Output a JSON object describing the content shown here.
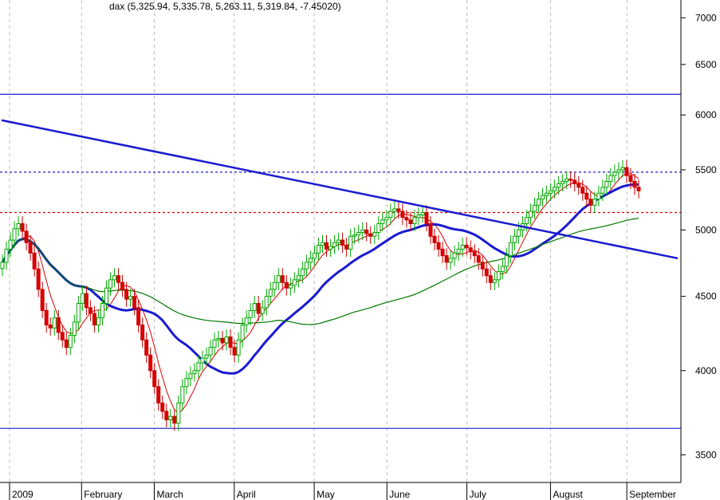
{
  "chart_data": {
    "type": "candlestick",
    "title": "dax (5,325.94, 5,335.78, 5,263.11, 5,319.84, -7.45020)",
    "y_scale": "log",
    "ylim": [
      3350,
      7200
    ],
    "y_ticks": [
      3500,
      4000,
      4500,
      5000,
      5500,
      6000,
      6500,
      7000
    ],
    "x_ticks": [
      {
        "label": "2009",
        "day": 0
      },
      {
        "label": "February",
        "day": 22
      },
      {
        "label": "March",
        "day": 42
      },
      {
        "label": "April",
        "day": 64
      },
      {
        "label": "May",
        "day": 86
      },
      {
        "label": "June",
        "day": 106
      },
      {
        "label": "July",
        "day": 128
      },
      {
        "label": "August",
        "day": 151
      },
      {
        "label": "September",
        "day": 172
      }
    ],
    "x_range": [
      0,
      186
    ],
    "candle_closes": [
      4750,
      4850,
      4920,
      5010,
      5050,
      4990,
      4900,
      4820,
      4700,
      4550,
      4400,
      4300,
      4280,
      4350,
      4250,
      4200,
      4150,
      4230,
      4320,
      4450,
      4520,
      4420,
      4380,
      4300,
      4350,
      4450,
      4560,
      4620,
      4650,
      4600,
      4550,
      4480,
      4500,
      4420,
      4300,
      4200,
      4100,
      4000,
      3900,
      3800,
      3750,
      3700,
      3720,
      3680,
      3800,
      3900,
      3950,
      3980,
      4000,
      4050,
      4080,
      4100,
      4150,
      4200,
      4210,
      4180,
      4220,
      4150,
      4100,
      4200,
      4300,
      4350,
      4400,
      4450,
      4380,
      4420,
      4500,
      4550,
      4600,
      4650,
      4600,
      4560,
      4580,
      4620,
      4650,
      4700,
      4750,
      4780,
      4820,
      4880,
      4900,
      4850,
      4870,
      4900,
      4920,
      4880,
      4850,
      4950,
      4960,
      4980,
      5000,
      4970,
      4950,
      4980,
      5050,
      5080,
      5100,
      5150,
      5170,
      5150,
      5100,
      5080,
      5050,
      5100,
      5120,
      5140,
      5050,
      4950,
      4900,
      4850,
      4800,
      4750,
      4780,
      4820,
      4850,
      4880,
      4860,
      4830,
      4800,
      4750,
      4700,
      4650,
      4600,
      4620,
      4680,
      4720,
      4800,
      4900,
      4950,
      5000,
      5050,
      5100,
      5150,
      5200,
      5250,
      5280,
      5300,
      5320,
      5350,
      5380,
      5400,
      5420,
      5410,
      5380,
      5350,
      5300,
      5250,
      5200,
      5250,
      5300,
      5350,
      5400,
      5450,
      5480,
      5500,
      5520,
      5450,
      5400,
      5350,
      5319.84
    ],
    "candle_directions": "mixed up/down (green up, red down)",
    "moving_averages": [
      {
        "name": "short",
        "color": "#dd0000",
        "values_desc": "fast MA tracking price"
      },
      {
        "name": "medium",
        "color": "#1a1ad0",
        "values_desc": "slow MA, heavy blue"
      },
      {
        "name": "long",
        "color": "#007700",
        "values_desc": "long MA descending then flattening near 5000"
      }
    ],
    "horizontal_lines": [
      {
        "value": 6200,
        "style": "solid",
        "color": "#1a1ad0"
      },
      {
        "value": 5480,
        "style": "dashed",
        "color": "#1a1ad0"
      },
      {
        "value": 5140,
        "style": "dashed",
        "color": "#dd0000"
      },
      {
        "value": 3650,
        "style": "solid",
        "color": "#1a1ad0"
      }
    ],
    "trend_line": {
      "from": {
        "day": 0,
        "value": 5950
      },
      "to": {
        "day": 186,
        "value": 4780
      },
      "color": "#1a1ad0"
    }
  }
}
